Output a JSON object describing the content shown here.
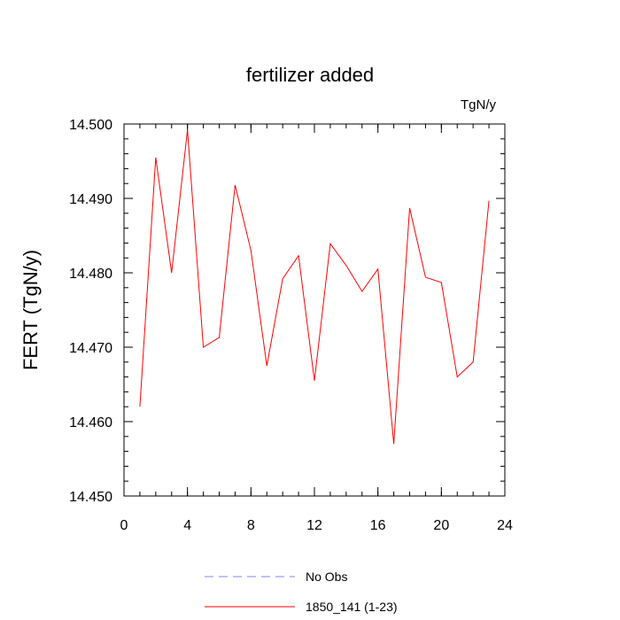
{
  "chart_data": {
    "type": "line",
    "title": "fertilizer added",
    "units_label": "TgN/y",
    "ylabel": "FERT  (TgN/y)",
    "xlabel": "",
    "xlim": [
      0,
      24
    ],
    "ylim": [
      14.45,
      14.5
    ],
    "x_ticks": [
      0,
      4,
      8,
      12,
      16,
      20,
      24
    ],
    "x_tick_labels": [
      "0",
      "4",
      "8",
      "12",
      "16",
      "20",
      "24"
    ],
    "y_ticks": [
      14.45,
      14.46,
      14.47,
      14.48,
      14.49,
      14.5
    ],
    "y_tick_labels": [
      "14.450",
      "14.460",
      "14.470",
      "14.480",
      "14.490",
      "14.500"
    ],
    "grid": false,
    "legend_position": "bottom-center",
    "series": [
      {
        "name": "1850_141 (1-23)",
        "color": "#ff0000",
        "dash": "solid",
        "x": [
          1,
          2,
          3,
          4,
          5,
          6,
          7,
          8,
          9,
          10,
          11,
          12,
          13,
          14,
          15,
          16,
          17,
          18,
          19,
          20,
          21,
          22,
          23
        ],
        "y": [
          14.462,
          14.4955,
          14.48,
          14.4992,
          14.47,
          14.4713,
          14.4918,
          14.483,
          14.4675,
          14.4792,
          14.4823,
          14.4655,
          14.4839,
          14.481,
          14.4775,
          14.4805,
          14.457,
          14.4887,
          14.4794,
          14.4787,
          14.466,
          14.468,
          14.4897
        ]
      }
    ],
    "legend": [
      {
        "label": "No Obs",
        "color": "#8080ff",
        "dash": "dashed"
      },
      {
        "label": "1850_141 (1-23)",
        "color": "#ff0000",
        "dash": "solid"
      }
    ]
  }
}
